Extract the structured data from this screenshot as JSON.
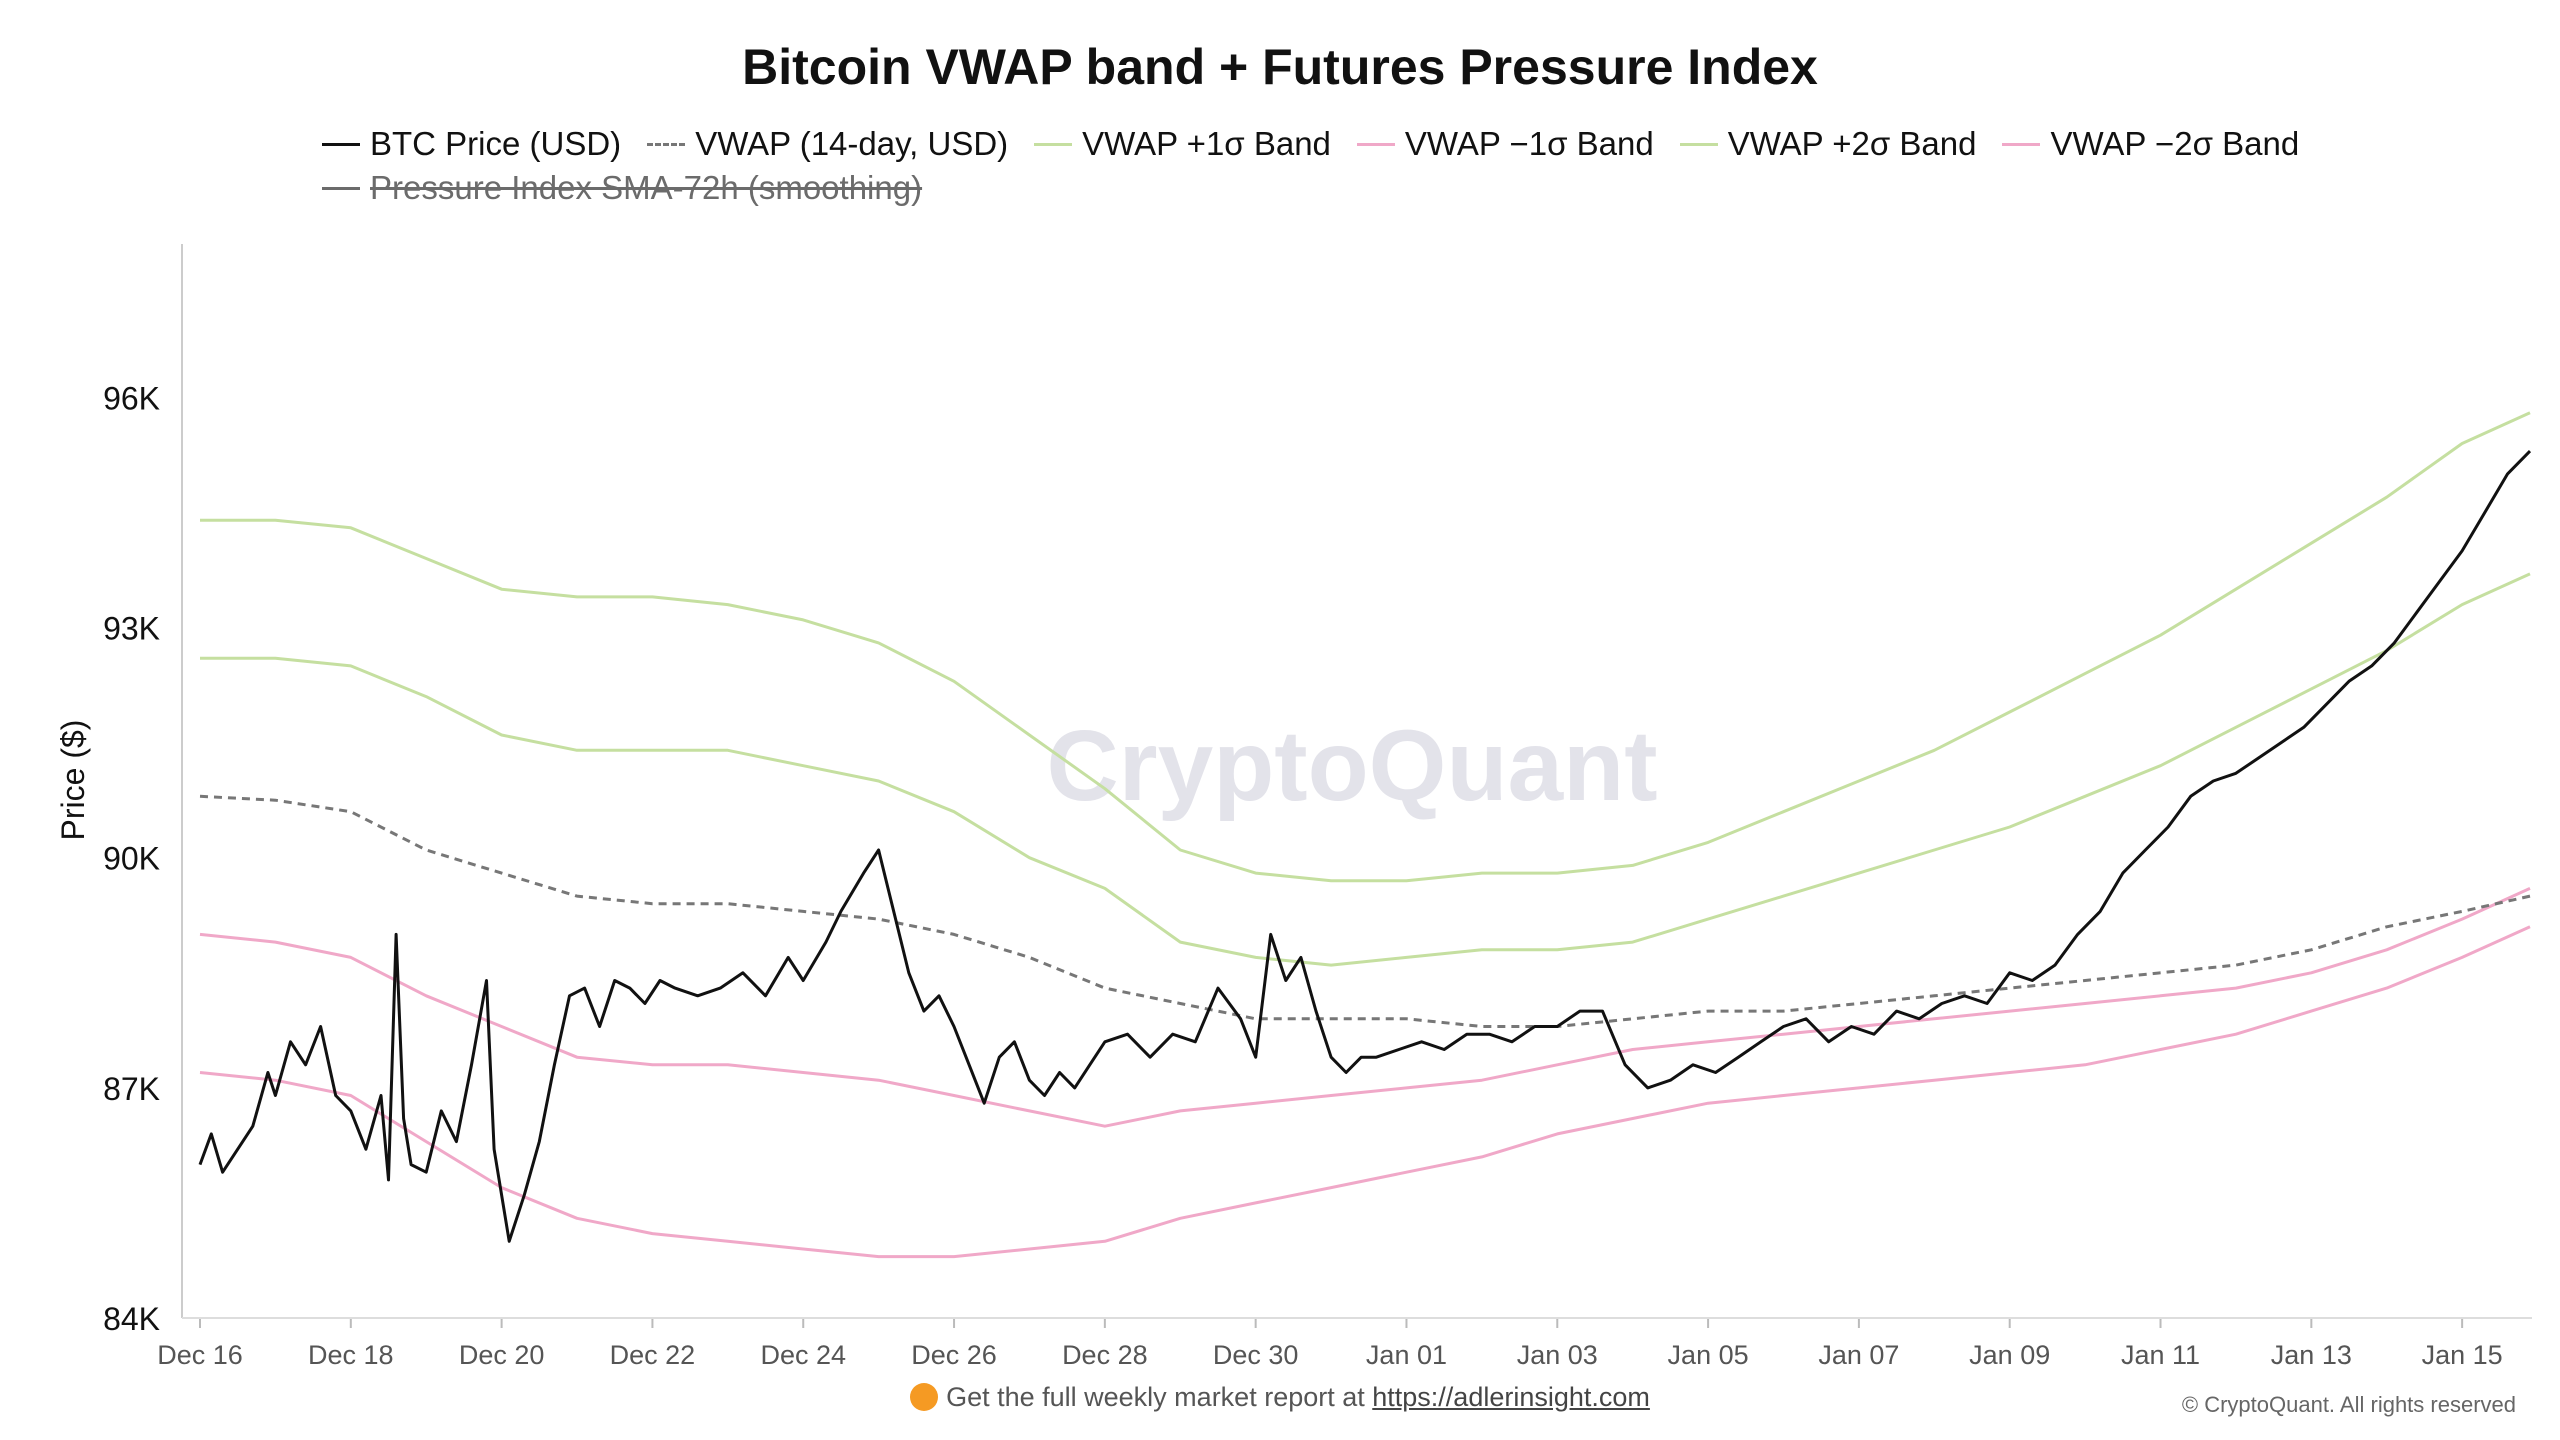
{
  "chart_data": {
    "type": "line",
    "title": "Bitcoin VWAP band + Futures Pressure Index",
    "ylabel": "Price ($)",
    "xlabel": "",
    "ylim": [
      84000,
      98000
    ],
    "y_ticks": [
      {
        "value": 84000,
        "label": "84K"
      },
      {
        "value": 87000,
        "label": "87K"
      },
      {
        "value": 90000,
        "label": "90K"
      },
      {
        "value": 93000,
        "label": "93K"
      },
      {
        "value": 96000,
        "label": "96K"
      }
    ],
    "x_ticks": [
      "Dec 16",
      "Dec 18",
      "Dec 20",
      "Dec 22",
      "Dec 24",
      "Dec 26",
      "Dec 28",
      "Dec 30",
      "Jan 01",
      "Jan 03",
      "Jan 05",
      "Jan 07",
      "Jan 09",
      "Jan 11",
      "Jan 13",
      "Jan 15"
    ],
    "x_range_days": [
      0,
      30.9
    ],
    "x_tick_days": [
      0,
      2,
      4,
      6,
      8,
      10,
      12,
      14,
      16,
      18,
      20,
      22,
      24,
      26,
      28,
      30
    ],
    "grid": false,
    "legend_position": "top",
    "series": [
      {
        "name": "BTC Price (USD)",
        "color": "#111111",
        "style": "solid",
        "visible": true,
        "points": [
          [
            0,
            86000
          ],
          [
            0.15,
            86400
          ],
          [
            0.3,
            85900
          ],
          [
            0.5,
            86200
          ],
          [
            0.7,
            86500
          ],
          [
            0.9,
            87200
          ],
          [
            1.0,
            86900
          ],
          [
            1.2,
            87600
          ],
          [
            1.4,
            87300
          ],
          [
            1.6,
            87800
          ],
          [
            1.8,
            86900
          ],
          [
            2.0,
            86700
          ],
          [
            2.2,
            86200
          ],
          [
            2.4,
            86900
          ],
          [
            2.5,
            85800
          ],
          [
            2.6,
            89000
          ],
          [
            2.7,
            86600
          ],
          [
            2.8,
            86000
          ],
          [
            3.0,
            85900
          ],
          [
            3.2,
            86700
          ],
          [
            3.4,
            86300
          ],
          [
            3.6,
            87300
          ],
          [
            3.8,
            88400
          ],
          [
            3.9,
            86200
          ],
          [
            4.1,
            85000
          ],
          [
            4.3,
            85600
          ],
          [
            4.5,
            86300
          ],
          [
            4.7,
            87300
          ],
          [
            4.9,
            88200
          ],
          [
            5.1,
            88300
          ],
          [
            5.3,
            87800
          ],
          [
            5.5,
            88400
          ],
          [
            5.7,
            88300
          ],
          [
            5.9,
            88100
          ],
          [
            6.1,
            88400
          ],
          [
            6.3,
            88300
          ],
          [
            6.6,
            88200
          ],
          [
            6.9,
            88300
          ],
          [
            7.2,
            88500
          ],
          [
            7.5,
            88200
          ],
          [
            7.8,
            88700
          ],
          [
            8.0,
            88400
          ],
          [
            8.3,
            88900
          ],
          [
            8.5,
            89300
          ],
          [
            8.8,
            89800
          ],
          [
            9.0,
            90100
          ],
          [
            9.2,
            89300
          ],
          [
            9.4,
            88500
          ],
          [
            9.6,
            88000
          ],
          [
            9.8,
            88200
          ],
          [
            10.0,
            87800
          ],
          [
            10.2,
            87300
          ],
          [
            10.4,
            86800
          ],
          [
            10.6,
            87400
          ],
          [
            10.8,
            87600
          ],
          [
            11.0,
            87100
          ],
          [
            11.2,
            86900
          ],
          [
            11.4,
            87200
          ],
          [
            11.6,
            87000
          ],
          [
            11.8,
            87300
          ],
          [
            12.0,
            87600
          ],
          [
            12.3,
            87700
          ],
          [
            12.6,
            87400
          ],
          [
            12.9,
            87700
          ],
          [
            13.2,
            87600
          ],
          [
            13.5,
            88300
          ],
          [
            13.8,
            87900
          ],
          [
            14.0,
            87400
          ],
          [
            14.2,
            89000
          ],
          [
            14.4,
            88400
          ],
          [
            14.6,
            88700
          ],
          [
            14.8,
            88000
          ],
          [
            15.0,
            87400
          ],
          [
            15.2,
            87200
          ],
          [
            15.4,
            87400
          ],
          [
            15.6,
            87400
          ],
          [
            15.9,
            87500
          ],
          [
            16.2,
            87600
          ],
          [
            16.5,
            87500
          ],
          [
            16.8,
            87700
          ],
          [
            17.1,
            87700
          ],
          [
            17.4,
            87600
          ],
          [
            17.7,
            87800
          ],
          [
            18.0,
            87800
          ],
          [
            18.3,
            88000
          ],
          [
            18.6,
            88000
          ],
          [
            18.9,
            87300
          ],
          [
            19.2,
            87000
          ],
          [
            19.5,
            87100
          ],
          [
            19.8,
            87300
          ],
          [
            20.1,
            87200
          ],
          [
            20.4,
            87400
          ],
          [
            20.7,
            87600
          ],
          [
            21.0,
            87800
          ],
          [
            21.3,
            87900
          ],
          [
            21.6,
            87600
          ],
          [
            21.9,
            87800
          ],
          [
            22.2,
            87700
          ],
          [
            22.5,
            88000
          ],
          [
            22.8,
            87900
          ],
          [
            23.1,
            88100
          ],
          [
            23.4,
            88200
          ],
          [
            23.7,
            88100
          ],
          [
            24.0,
            88500
          ],
          [
            24.3,
            88400
          ],
          [
            24.6,
            88600
          ],
          [
            24.9,
            89000
          ],
          [
            25.2,
            89300
          ],
          [
            25.5,
            89800
          ],
          [
            25.8,
            90100
          ],
          [
            26.1,
            90400
          ],
          [
            26.4,
            90800
          ],
          [
            26.7,
            91000
          ],
          [
            27.0,
            91100
          ],
          [
            27.3,
            91300
          ],
          [
            27.6,
            91500
          ],
          [
            27.9,
            91700
          ],
          [
            28.2,
            92000
          ],
          [
            28.5,
            92300
          ],
          [
            28.8,
            92500
          ],
          [
            29.1,
            92800
          ],
          [
            29.4,
            93200
          ],
          [
            29.7,
            93600
          ],
          [
            30.0,
            94000
          ],
          [
            30.3,
            94500
          ],
          [
            30.6,
            95000
          ],
          [
            30.9,
            95300
          ]
        ]
      },
      {
        "name": "VWAP (14-day, USD)",
        "color": "#777777",
        "style": "dashed",
        "visible": true,
        "points": [
          [
            0,
            90800
          ],
          [
            1,
            90750
          ],
          [
            2,
            90600
          ],
          [
            3,
            90100
          ],
          [
            4,
            89800
          ],
          [
            5,
            89500
          ],
          [
            6,
            89400
          ],
          [
            7,
            89400
          ],
          [
            8,
            89300
          ],
          [
            9,
            89200
          ],
          [
            10,
            89000
          ],
          [
            11,
            88700
          ],
          [
            12,
            88300
          ],
          [
            13,
            88100
          ],
          [
            14,
            87900
          ],
          [
            15,
            87900
          ],
          [
            16,
            87900
          ],
          [
            17,
            87800
          ],
          [
            18,
            87800
          ],
          [
            19,
            87900
          ],
          [
            20,
            88000
          ],
          [
            21,
            88000
          ],
          [
            22,
            88100
          ],
          [
            23,
            88200
          ],
          [
            24,
            88300
          ],
          [
            25,
            88400
          ],
          [
            26,
            88500
          ],
          [
            27,
            88600
          ],
          [
            28,
            88800
          ],
          [
            29,
            89100
          ],
          [
            30,
            89300
          ],
          [
            30.9,
            89500
          ]
        ]
      },
      {
        "name": "VWAP +1σ Band",
        "color": "#c5dfa0",
        "style": "solid",
        "visible": true,
        "points": [
          [
            0,
            92600
          ],
          [
            1,
            92600
          ],
          [
            2,
            92500
          ],
          [
            3,
            92100
          ],
          [
            4,
            91600
          ],
          [
            5,
            91400
          ],
          [
            6,
            91400
          ],
          [
            7,
            91400
          ],
          [
            8,
            91200
          ],
          [
            9,
            91000
          ],
          [
            10,
            90600
          ],
          [
            11,
            90000
          ],
          [
            12,
            89600
          ],
          [
            13,
            88900
          ],
          [
            14,
            88700
          ],
          [
            15,
            88600
          ],
          [
            16,
            88700
          ],
          [
            17,
            88800
          ],
          [
            18,
            88800
          ],
          [
            19,
            88900
          ],
          [
            20,
            89200
          ],
          [
            21,
            89500
          ],
          [
            22,
            89800
          ],
          [
            23,
            90100
          ],
          [
            24,
            90400
          ],
          [
            25,
            90800
          ],
          [
            26,
            91200
          ],
          [
            27,
            91700
          ],
          [
            28,
            92200
          ],
          [
            29,
            92700
          ],
          [
            30,
            93300
          ],
          [
            30.9,
            93700
          ]
        ]
      },
      {
        "name": "VWAP −1σ Band",
        "color": "#f0a8c8",
        "style": "solid",
        "visible": true,
        "points": [
          [
            0,
            89000
          ],
          [
            1,
            88900
          ],
          [
            2,
            88700
          ],
          [
            3,
            88200
          ],
          [
            4,
            87800
          ],
          [
            5,
            87400
          ],
          [
            6,
            87300
          ],
          [
            7,
            87300
          ],
          [
            8,
            87200
          ],
          [
            9,
            87100
          ],
          [
            10,
            86900
          ],
          [
            11,
            86700
          ],
          [
            12,
            86500
          ],
          [
            13,
            86700
          ],
          [
            14,
            86800
          ],
          [
            15,
            86900
          ],
          [
            16,
            87000
          ],
          [
            17,
            87100
          ],
          [
            18,
            87300
          ],
          [
            19,
            87500
          ],
          [
            20,
            87600
          ],
          [
            21,
            87700
          ],
          [
            22,
            87800
          ],
          [
            23,
            87900
          ],
          [
            24,
            88000
          ],
          [
            25,
            88100
          ],
          [
            26,
            88200
          ],
          [
            27,
            88300
          ],
          [
            28,
            88500
          ],
          [
            29,
            88800
          ],
          [
            30,
            89200
          ],
          [
            30.9,
            89600
          ]
        ]
      },
      {
        "name": "VWAP +2σ Band",
        "color": "#c5dfa0",
        "style": "solid",
        "visible": true,
        "points": [
          [
            0,
            94400
          ],
          [
            1,
            94400
          ],
          [
            2,
            94300
          ],
          [
            3,
            93900
          ],
          [
            4,
            93500
          ],
          [
            5,
            93400
          ],
          [
            6,
            93400
          ],
          [
            7,
            93300
          ],
          [
            8,
            93100
          ],
          [
            9,
            92800
          ],
          [
            10,
            92300
          ],
          [
            11,
            91600
          ],
          [
            12,
            90900
          ],
          [
            13,
            90100
          ],
          [
            14,
            89800
          ],
          [
            15,
            89700
          ],
          [
            16,
            89700
          ],
          [
            17,
            89800
          ],
          [
            18,
            89800
          ],
          [
            19,
            89900
          ],
          [
            20,
            90200
          ],
          [
            21,
            90600
          ],
          [
            22,
            91000
          ],
          [
            23,
            91400
          ],
          [
            24,
            91900
          ],
          [
            25,
            92400
          ],
          [
            26,
            92900
          ],
          [
            27,
            93500
          ],
          [
            28,
            94100
          ],
          [
            29,
            94700
          ],
          [
            30,
            95400
          ],
          [
            30.9,
            95800
          ]
        ]
      },
      {
        "name": "VWAP −2σ Band",
        "color": "#f0a8c8",
        "style": "solid",
        "visible": true,
        "points": [
          [
            0,
            87200
          ],
          [
            1,
            87100
          ],
          [
            2,
            86900
          ],
          [
            3,
            86300
          ],
          [
            4,
            85700
          ],
          [
            5,
            85300
          ],
          [
            6,
            85100
          ],
          [
            7,
            85000
          ],
          [
            8,
            84900
          ],
          [
            9,
            84800
          ],
          [
            10,
            84800
          ],
          [
            11,
            84900
          ],
          [
            12,
            85000
          ],
          [
            13,
            85300
          ],
          [
            14,
            85500
          ],
          [
            15,
            85700
          ],
          [
            16,
            85900
          ],
          [
            17,
            86100
          ],
          [
            18,
            86400
          ],
          [
            19,
            86600
          ],
          [
            20,
            86800
          ],
          [
            21,
            86900
          ],
          [
            22,
            87000
          ],
          [
            23,
            87100
          ],
          [
            24,
            87200
          ],
          [
            25,
            87300
          ],
          [
            26,
            87500
          ],
          [
            27,
            87700
          ],
          [
            28,
            88000
          ],
          [
            29,
            88300
          ],
          [
            30,
            88700
          ],
          [
            30.9,
            89100
          ]
        ]
      },
      {
        "name": "Pressure Index SMA-72h (smoothing)",
        "color": "#6b6b6b",
        "style": "solid",
        "visible": false,
        "points": []
      }
    ]
  },
  "watermark": "CryptoQuant",
  "footer": {
    "text": "Get the full weekly market report at",
    "link": "https://adlerinsight.com",
    "copyright": "© CryptoQuant. All rights reserved"
  }
}
